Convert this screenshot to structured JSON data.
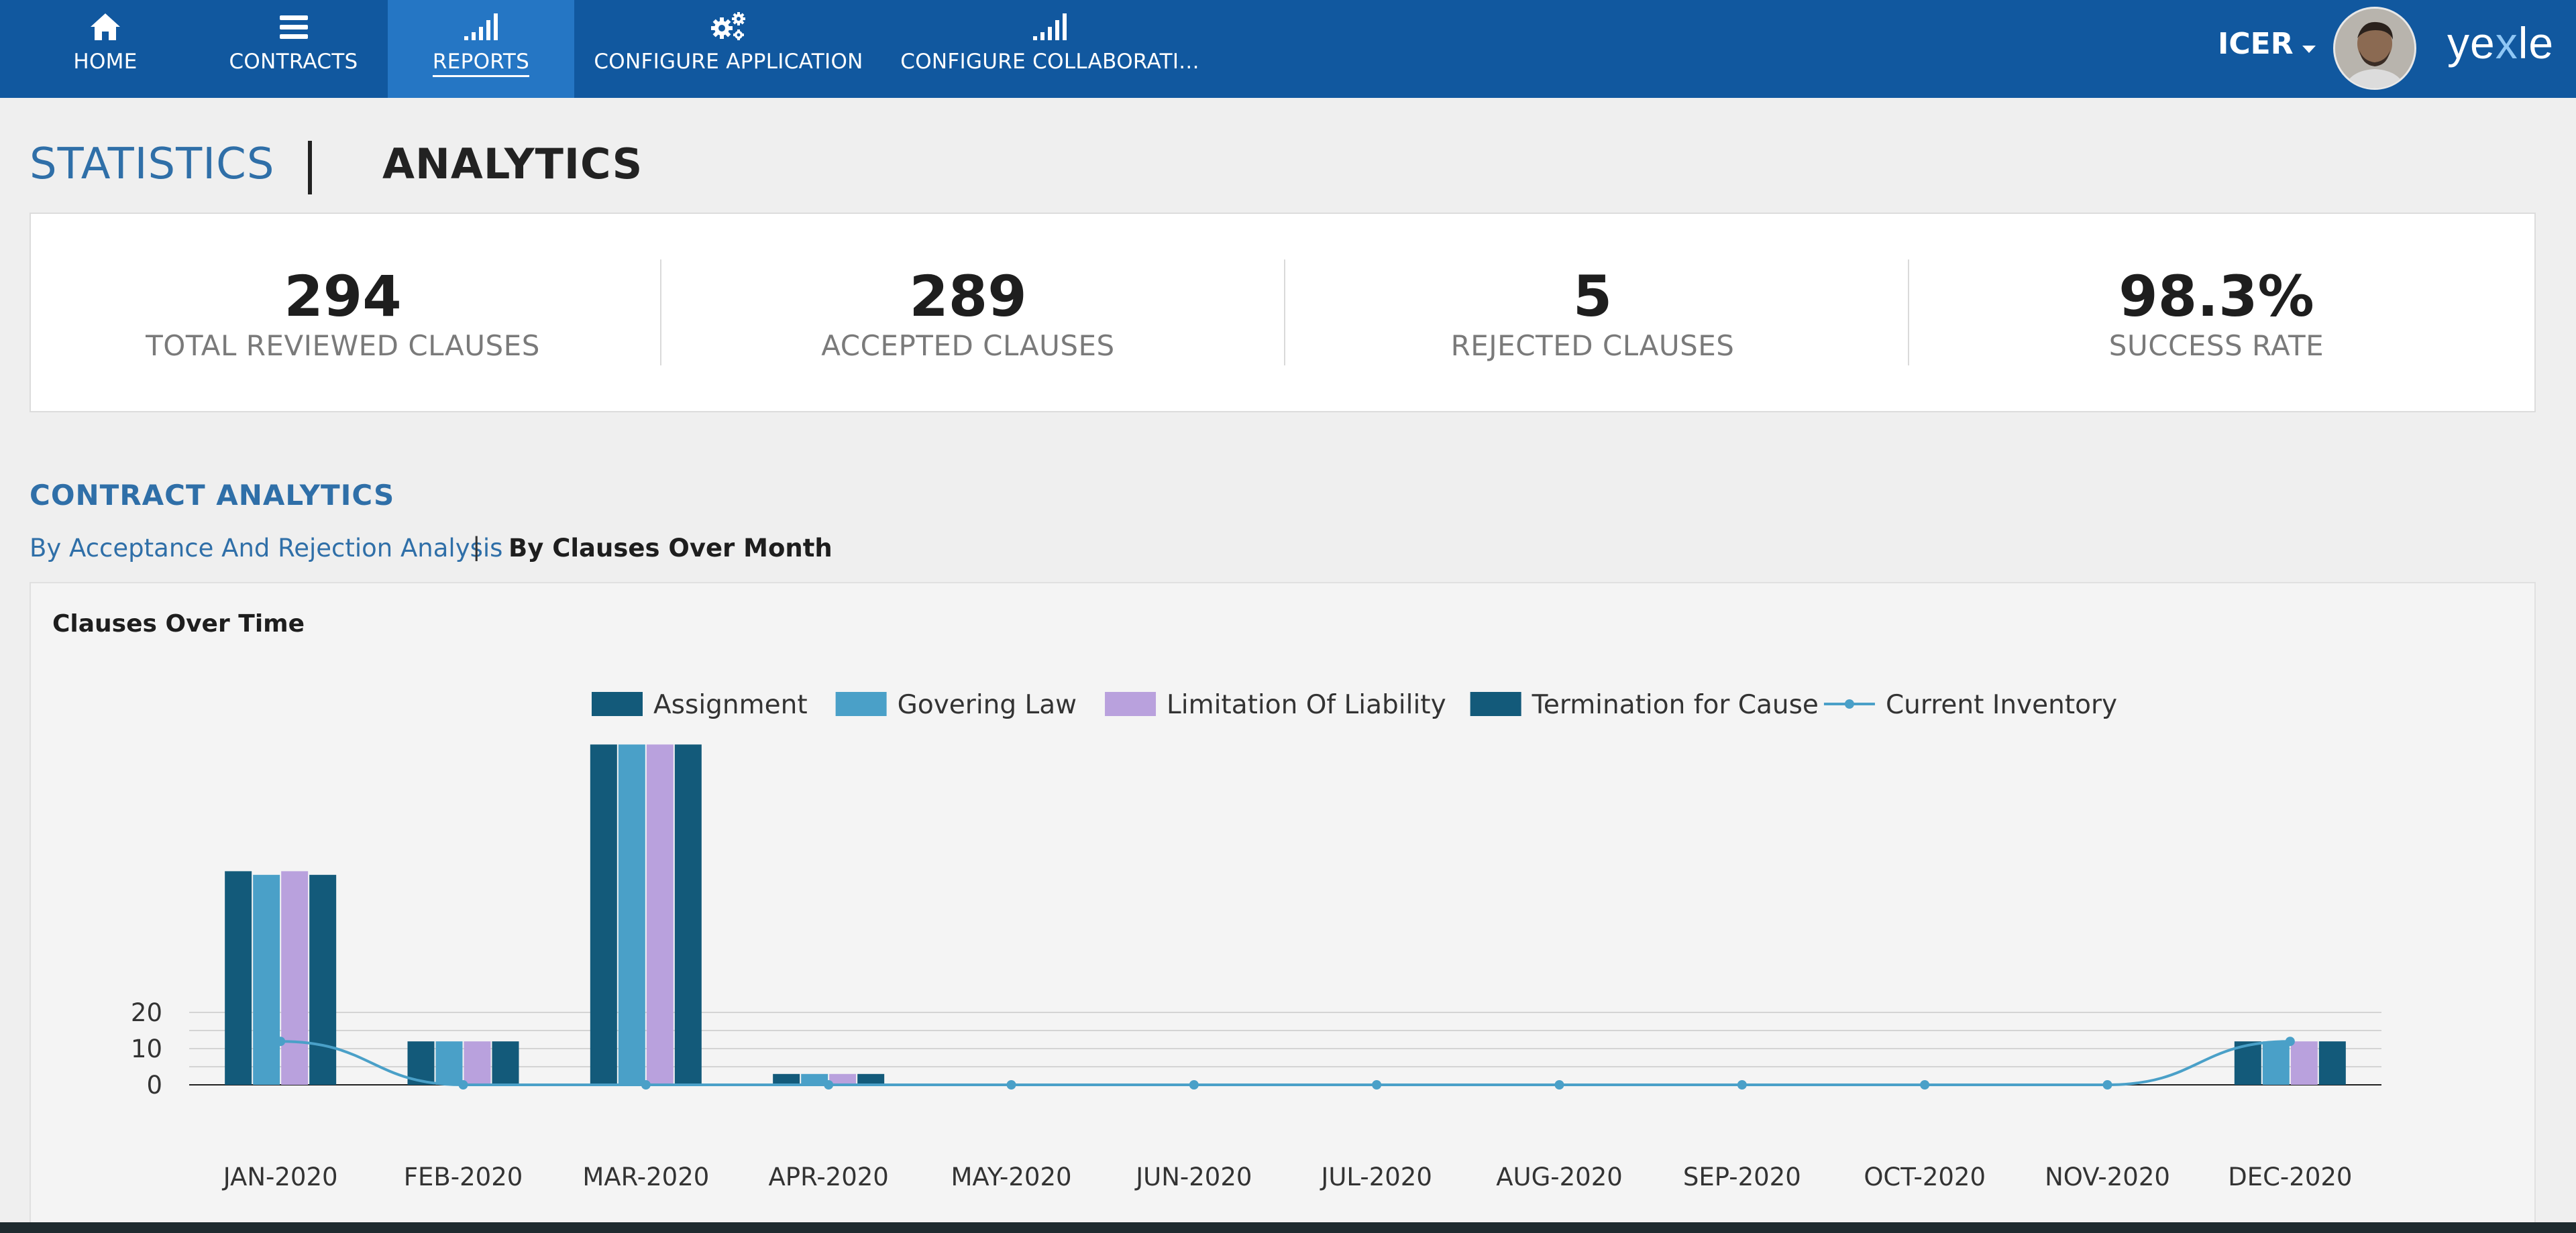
{
  "nav": {
    "items": [
      {
        "label": "HOME",
        "icon": "home-icon"
      },
      {
        "label": "CONTRACTS",
        "icon": "list-icon"
      },
      {
        "label": "REPORTS",
        "icon": "signal-bars-icon"
      },
      {
        "label": "CONFIGURE APPLICATION",
        "icon": "gears-icon"
      },
      {
        "label": "CONFIGURE COLLABORATI...",
        "icon": "signal-bars-icon"
      }
    ],
    "active_index": 2,
    "user": "ICER",
    "brand": {
      "before_x": "ye",
      "x": "x",
      "after_x": "le"
    }
  },
  "header": {
    "tab_statistics": "STATISTICS",
    "tab_analytics": "ANALYTICS"
  },
  "stats": [
    {
      "value": "294",
      "label": "TOTAL REVIEWED CLAUSES"
    },
    {
      "value": "289",
      "label": "ACCEPTED CLAUSES"
    },
    {
      "value": "5",
      "label": "REJECTED CLAUSES"
    },
    {
      "value": "98.3%",
      "label": "SUCCESS RATE"
    }
  ],
  "analytics": {
    "section_title": "CONTRACT ANALYTICS",
    "subtab_acceptance": "By Acceptance And Rejection Analysis",
    "subtab_separator": "|",
    "subtab_clauses": "By Clauses Over Month"
  },
  "chart_data": {
    "type": "bar",
    "title": "Clauses Over Time",
    "categories": [
      "JAN-2020",
      "FEB-2020",
      "MAR-2020",
      "APR-2020",
      "MAY-2020",
      "JUN-2020",
      "JUL-2020",
      "AUG-2020",
      "SEP-2020",
      "OCT-2020",
      "NOV-2020",
      "DEC-2020"
    ],
    "y_ticks": [
      "0",
      "10",
      "20"
    ],
    "ylim": [
      0,
      90
    ],
    "legend_placement": "top-center",
    "series": [
      {
        "name": "Assignment",
        "kind": "bar",
        "color": "#135a7a",
        "values": [
          59,
          12,
          94,
          3,
          0,
          0,
          0,
          0,
          0,
          0,
          0,
          12
        ]
      },
      {
        "name": "Govering Law",
        "kind": "bar",
        "color": "#4aa0c8",
        "values": [
          58,
          12,
          94,
          3,
          0,
          0,
          0,
          0,
          0,
          0,
          0,
          12
        ]
      },
      {
        "name": "Limitation Of Liability",
        "kind": "bar",
        "color": "#b9a1dd",
        "values": [
          59,
          12,
          94,
          3,
          0,
          0,
          0,
          0,
          0,
          0,
          0,
          12
        ]
      },
      {
        "name": "Termination for Cause",
        "kind": "bar",
        "color": "#135a7a",
        "values": [
          58,
          12,
          94,
          3,
          0,
          0,
          0,
          0,
          0,
          0,
          0,
          12
        ]
      },
      {
        "name": "Current Inventory",
        "kind": "line",
        "color": "#4aa0c8",
        "values": [
          12,
          0,
          0,
          0,
          0,
          0,
          0,
          0,
          0,
          0,
          0,
          12
        ]
      }
    ]
  }
}
